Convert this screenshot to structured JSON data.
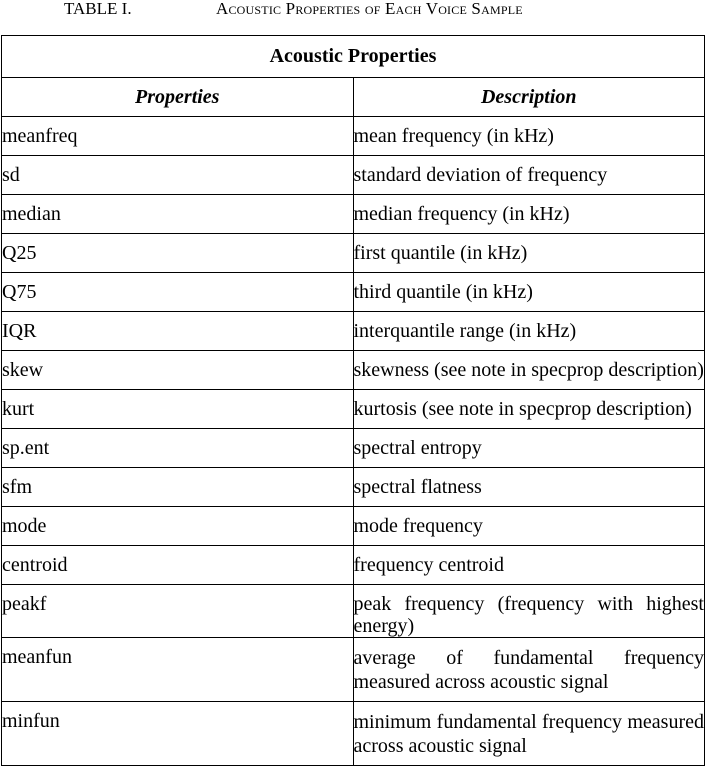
{
  "caption": {
    "number": "TABLE I.",
    "title": "Acoustic Properties of Each Voice Sample"
  },
  "table": {
    "group_header": "Acoustic Properties",
    "columns": [
      "Properties",
      "Description"
    ],
    "rows": [
      {
        "property": "meanfreq",
        "description": "mean frequency (in kHz)"
      },
      {
        "property": "sd",
        "description": "standard deviation of frequency"
      },
      {
        "property": "median",
        "description": "median frequency (in kHz)"
      },
      {
        "property": "Q25",
        "description": "first quantile (in kHz)"
      },
      {
        "property": "Q75",
        "description": "third quantile (in kHz)"
      },
      {
        "property": "IQR",
        "description": "interquantile range (in kHz)"
      },
      {
        "property": "skew",
        "description": "skewness (see note in specprop description)"
      },
      {
        "property": "kurt",
        "description": "kurtosis (see note in specprop description)"
      },
      {
        "property": "sp.ent",
        "description": "spectral entropy"
      },
      {
        "property": "sfm",
        "description": "spectral flatness"
      },
      {
        "property": "mode",
        "description": "mode frequency"
      },
      {
        "property": "centroid",
        "description": "frequency centroid"
      },
      {
        "property": "peakf",
        "description": "peak frequency (frequency with highest energy)"
      },
      {
        "property": "meanfun",
        "description": "average of fundamental frequency measured across acoustic signal"
      },
      {
        "property": "minfun",
        "description": "minimum fundamental frequency measured across acoustic signal"
      }
    ]
  }
}
